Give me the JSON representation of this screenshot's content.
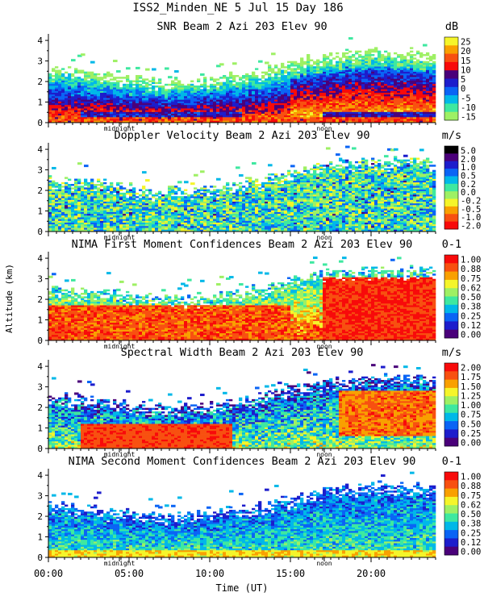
{
  "chart_data": {
    "type": "heatmap",
    "title": "ISS2_Minden_NE    5 Jul 15 Day 186",
    "xlabel": "Time (UT)",
    "ylabel": "Altitude (km)",
    "xlim": [
      0,
      24
    ],
    "x_ticks": [
      {
        "value": 0,
        "label": "00:00"
      },
      {
        "value": 5,
        "label": "05:00"
      },
      {
        "value": 10,
        "label": "10:00"
      },
      {
        "value": 15,
        "label": "15:00"
      },
      {
        "value": 20,
        "label": "20:00"
      }
    ],
    "time_markers": [
      {
        "value": 4.4,
        "label": "midnight"
      },
      {
        "value": 17.1,
        "label": "noon"
      }
    ],
    "ylim": [
      0,
      4.2
    ],
    "y_ticks": [
      0,
      1,
      2,
      3,
      4
    ],
    "panels": [
      {
        "title": "SNR Beam 2 Azi 203 Elev 90",
        "units": "dB",
        "colorbar_labels": [
          "25",
          "20",
          "15",
          "10",
          "5",
          "0",
          "-5",
          "-10",
          "-15"
        ],
        "colors": [
          "#f5f52a",
          "#f9a000",
          "#f85010",
          "#f80a0a",
          "#4a007a",
          "#1d1dcc",
          "#0a64f5",
          "#00b8e8",
          "#3ee8a0",
          "#9ef064"
        ],
        "regime": "snr"
      },
      {
        "title": "Doppler Velocity Beam 2 Azi 203 Elev 90",
        "units": "m/s",
        "colorbar_labels": [
          "5.0",
          "2.0",
          "1.0",
          "0.5",
          "0.2",
          "0.0",
          "-0.2",
          "-0.5",
          "-1.0",
          "-2.0"
        ],
        "colors": [
          "#000000",
          "#4a007a",
          "#1d1dcc",
          "#0a64f5",
          "#00b8e8",
          "#3ee8a0",
          "#9ef064",
          "#f5f52a",
          "#f9a000",
          "#f85010",
          "#f80a0a"
        ],
        "regime": "vel"
      },
      {
        "title": "NIMA First Moment Confidences Beam 2 Azi 203 Elev 90",
        "units": "0-1",
        "colorbar_labels": [
          "1.00",
          "0.88",
          "0.75",
          "0.62",
          "0.50",
          "0.38",
          "0.25",
          "0.12",
          "0.00"
        ],
        "colors": [
          "#f80a0a",
          "#f85010",
          "#f9a000",
          "#f5f52a",
          "#9ef064",
          "#3ee8a0",
          "#00b8e8",
          "#0a64f5",
          "#1d1dcc",
          "#4a007a"
        ],
        "regime": "conf1"
      },
      {
        "title": "Spectral Width Beam 2 Azi 203 Elev 90",
        "units": "m/s",
        "colorbar_labels": [
          "2.00",
          "1.75",
          "1.50",
          "1.25",
          "1.00",
          "0.75",
          "0.50",
          "0.25",
          "0.00"
        ],
        "colors": [
          "#f80a0a",
          "#f85010",
          "#f9a000",
          "#f5f52a",
          "#9ef064",
          "#3ee8a0",
          "#00b8e8",
          "#0a64f5",
          "#1d1dcc",
          "#4a007a"
        ],
        "regime": "width"
      },
      {
        "title": "NIMA Second Moment Confidences Beam 2 Azi 203 Elev 90",
        "units": "0-1",
        "colorbar_labels": [
          "1.00",
          "0.88",
          "0.75",
          "0.62",
          "0.50",
          "0.38",
          "0.25",
          "0.12",
          "0.00"
        ],
        "colors": [
          "#f80a0a",
          "#f85010",
          "#f9a000",
          "#f5f52a",
          "#9ef064",
          "#3ee8a0",
          "#00b8e8",
          "#0a64f5",
          "#1d1dcc",
          "#4a007a"
        ],
        "regime": "conf2"
      }
    ],
    "data_top_km": [
      {
        "time": 0,
        "top": 2.6
      },
      {
        "time": 2,
        "top": 2.5
      },
      {
        "time": 4,
        "top": 2.3
      },
      {
        "time": 6,
        "top": 2.1
      },
      {
        "time": 8,
        "top": 2.0
      },
      {
        "time": 10,
        "top": 2.1
      },
      {
        "time": 12,
        "top": 2.4
      },
      {
        "time": 14,
        "top": 2.7
      },
      {
        "time": 16,
        "top": 3.1
      },
      {
        "time": 18,
        "top": 3.4
      },
      {
        "time": 20,
        "top": 3.5
      },
      {
        "time": 22,
        "top": 3.5
      },
      {
        "time": 24,
        "top": 3.4
      }
    ]
  }
}
